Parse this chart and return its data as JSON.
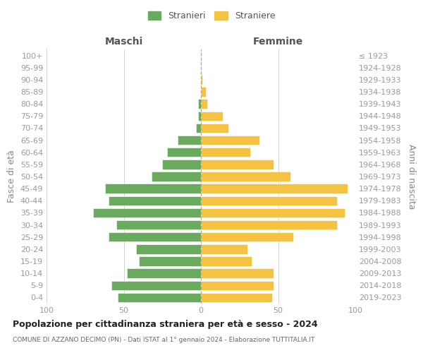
{
  "age_groups": [
    "0-4",
    "5-9",
    "10-14",
    "15-19",
    "20-24",
    "25-29",
    "30-34",
    "35-39",
    "40-44",
    "45-49",
    "50-54",
    "55-59",
    "60-64",
    "65-69",
    "70-74",
    "75-79",
    "80-84",
    "85-89",
    "90-94",
    "95-99",
    "100+"
  ],
  "birth_years": [
    "2019-2023",
    "2014-2018",
    "2009-2013",
    "2004-2008",
    "1999-2003",
    "1994-1998",
    "1989-1993",
    "1984-1988",
    "1979-1983",
    "1974-1978",
    "1969-1973",
    "1964-1968",
    "1959-1963",
    "1954-1958",
    "1949-1953",
    "1944-1948",
    "1939-1943",
    "1934-1938",
    "1929-1933",
    "1924-1928",
    "≤ 1923"
  ],
  "maschi": [
    54,
    58,
    48,
    40,
    42,
    60,
    55,
    70,
    60,
    62,
    32,
    25,
    22,
    15,
    3,
    2,
    2,
    0,
    0,
    0,
    0
  ],
  "femmine": [
    46,
    47,
    47,
    33,
    30,
    60,
    88,
    93,
    88,
    95,
    58,
    47,
    32,
    38,
    18,
    14,
    4,
    3,
    1,
    0,
    0
  ],
  "male_color": "#6aaa5e",
  "female_color": "#f5c242",
  "bar_edge_color": "white",
  "background_color": "#ffffff",
  "grid_color": "#cccccc",
  "title": "Popolazione per cittadinanza straniera per età e sesso - 2024",
  "subtitle": "COMUNE DI AZZANO DECIMO (PN) - Dati ISTAT al 1° gennaio 2024 - Elaborazione TUTTITALIA.IT",
  "xlabel_left": "Maschi",
  "xlabel_right": "Femmine",
  "ylabel_left": "Fasce di età",
  "ylabel_right": "Anni di nascita",
  "legend_male": "Stranieri",
  "legend_female": "Straniere",
  "xlim": 100,
  "tick_fontsize": 8,
  "label_fontsize": 9
}
